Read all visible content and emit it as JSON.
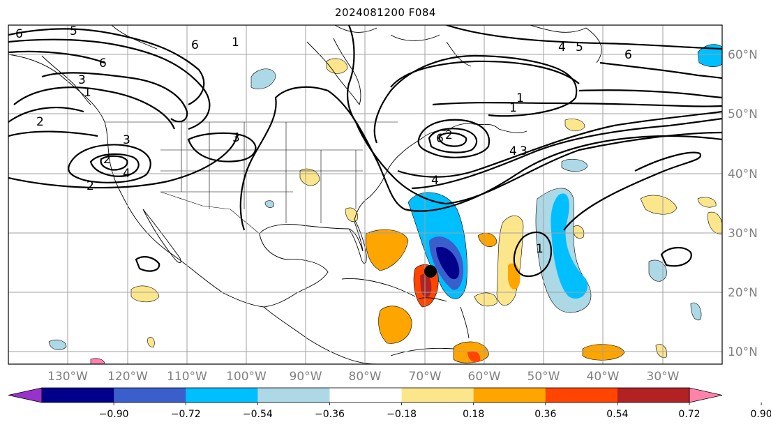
{
  "title": "2024081200 F084",
  "map": {
    "lat_labels": [
      "60°N",
      "50°N",
      "40°N",
      "30°N",
      "20°N",
      "10°N"
    ],
    "lon_labels": [
      "130°W",
      "120°W",
      "110°W",
      "100°W",
      "90°W",
      "80°W",
      "70°W",
      "60°W",
      "50°W",
      "40°W",
      "30°W"
    ],
    "gridline_color": "#a0a0a0",
    "contour_labels": [
      "6",
      "5",
      "6",
      "3",
      "1",
      "2",
      "3",
      "2",
      "2",
      "4",
      "3",
      "1",
      "6",
      "1",
      "1",
      "4",
      "2",
      "4",
      "1",
      "6",
      "5",
      "4",
      "3",
      "6"
    ],
    "storm_marker": "black-dot"
  },
  "colorbar": {
    "ticks": [
      "−0.90",
      "−0.72",
      "−0.54",
      "−0.36",
      "−0.18",
      "0.18",
      "0.36",
      "0.54",
      "0.72",
      "0.90"
    ],
    "colors": [
      "#9932cc",
      "#00008b",
      "#3a5fcd",
      "#00bfff",
      "#add8e6",
      "#ffffff",
      "#fce68c",
      "#ffa500",
      "#ff4500",
      "#b22222",
      "#ff82ab"
    ],
    "extend": "both"
  }
}
